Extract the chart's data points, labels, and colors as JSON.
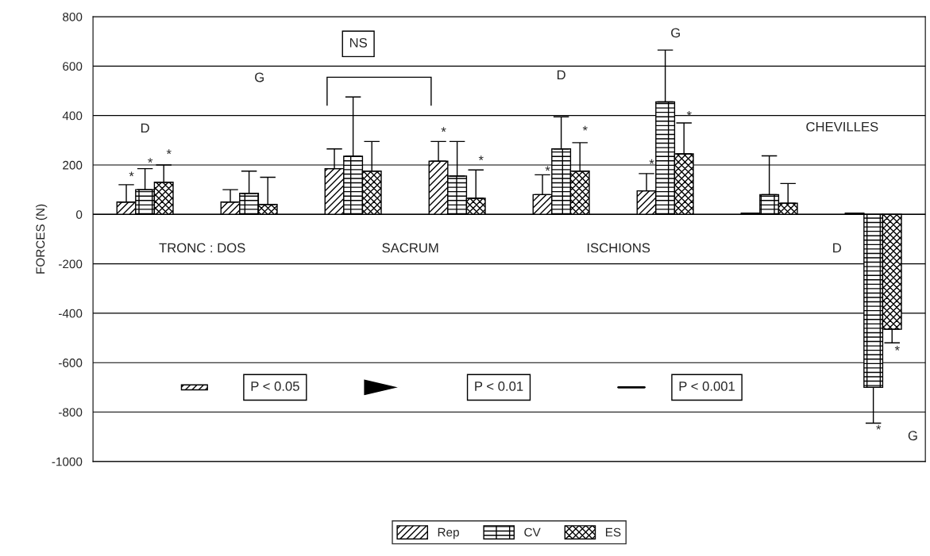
{
  "chart_data": {
    "type": "bar",
    "ylabel": "FORCES (N)",
    "categories": [
      null,
      null,
      null,
      null,
      null,
      null,
      null,
      null
    ],
    "series": [
      {
        "name": "Rep",
        "color": "#000000",
        "values": [
          50,
          50,
          185,
          215,
          80,
          95,
          5,
          5
        ],
        "errors": [
          [
            50,
            120
          ],
          [
            50,
            100
          ],
          [
            185,
            265
          ],
          [
            215,
            295
          ],
          [
            80,
            160
          ],
          [
            95,
            165
          ],
          null,
          null
        ]
      },
      {
        "name": "CV",
        "color": "#000000",
        "values": [
          100,
          85,
          235,
          155,
          265,
          455,
          80,
          -700
        ],
        "errors": [
          [
            100,
            185
          ],
          [
            85,
            175
          ],
          [
            235,
            475
          ],
          [
            155,
            295
          ],
          [
            265,
            395
          ],
          [
            455,
            665
          ],
          [
            80,
            237
          ],
          [
            -845,
            -700
          ]
        ]
      },
      {
        "name": "ES",
        "color": "#000000",
        "values": [
          130,
          40,
          175,
          65,
          175,
          245,
          45,
          -465
        ],
        "errors": [
          [
            130,
            200
          ],
          [
            40,
            150
          ],
          [
            175,
            295
          ],
          [
            65,
            180
          ],
          [
            175,
            290
          ],
          [
            245,
            370
          ],
          [
            45,
            125
          ],
          [
            -520,
            -465
          ]
        ]
      }
    ],
    "ylim": [
      -1000,
      800
    ],
    "yticks": [
      -1000,
      -800,
      -600,
      -400,
      -200,
      0,
      200,
      400,
      600,
      800
    ],
    "grid": "y",
    "legend": "bottom",
    "tick_labels": "y",
    "annotations": [
      "D",
      "G",
      "NS",
      "D",
      "G",
      "CHEVILLES",
      "D",
      "G",
      "TRONC : DOS",
      "SACRUM",
      "ISCHIONS",
      "P < 0.05",
      "P < 0.01",
      "P < 0.001",
      "*",
      "*",
      "*",
      "*",
      "*",
      "*",
      "*",
      "*",
      "*",
      "*",
      "*"
    ]
  }
}
